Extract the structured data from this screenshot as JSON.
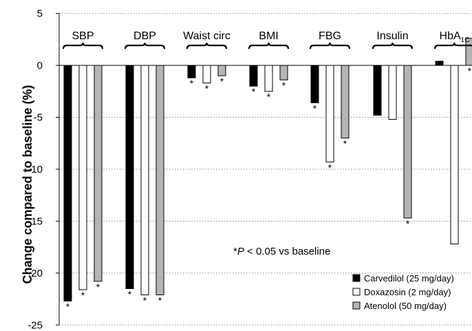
{
  "chart_data": {
    "type": "bar",
    "ylabel": "Change compared to baseline (%)",
    "ylim": [
      -25,
      5
    ],
    "yticks": [
      "5",
      "0",
      "-5",
      "-10",
      "-15",
      "-20",
      "-25"
    ],
    "ytick_values": [
      5,
      0,
      -5,
      -10,
      -15,
      -20,
      -25
    ],
    "grid": "horizontal dotted",
    "legend_position": "bottom-right",
    "categories": [
      {
        "label": "SBP"
      },
      {
        "label": "DBP"
      },
      {
        "label": "Waist circ"
      },
      {
        "label": "BMI"
      },
      {
        "label": "FBG"
      },
      {
        "label": "Insulin"
      },
      {
        "label": "HbA",
        "subscript": "1C"
      }
    ],
    "series": [
      {
        "name": "Carvedilol (25 mg/day)",
        "color": "#000000",
        "values": [
          -22.7,
          -21.5,
          -1.2,
          -2.0,
          -3.6,
          -4.8,
          0.4
        ],
        "significant": [
          true,
          true,
          true,
          true,
          true,
          false,
          false
        ]
      },
      {
        "name": "Doxazosin (2 mg/day)",
        "color": "#ffffff",
        "values": [
          -21.6,
          -22.1,
          -1.7,
          -2.5,
          -9.3,
          -5.2,
          -17.2
        ],
        "significant": [
          true,
          true,
          true,
          true,
          true,
          false,
          false
        ]
      },
      {
        "name": "Atenolol (50 mg/day)",
        "color": "#b4b4b4",
        "values": [
          -20.8,
          -22.1,
          -1.0,
          -1.4,
          -7.0,
          -14.7,
          2.6
        ],
        "significant": [
          true,
          true,
          true,
          true,
          true,
          true,
          true
        ]
      }
    ],
    "significance_marker": "*",
    "annotation": {
      "prefix": "*",
      "italic": "P",
      "suffix": " < 0.05 vs baseline"
    }
  }
}
